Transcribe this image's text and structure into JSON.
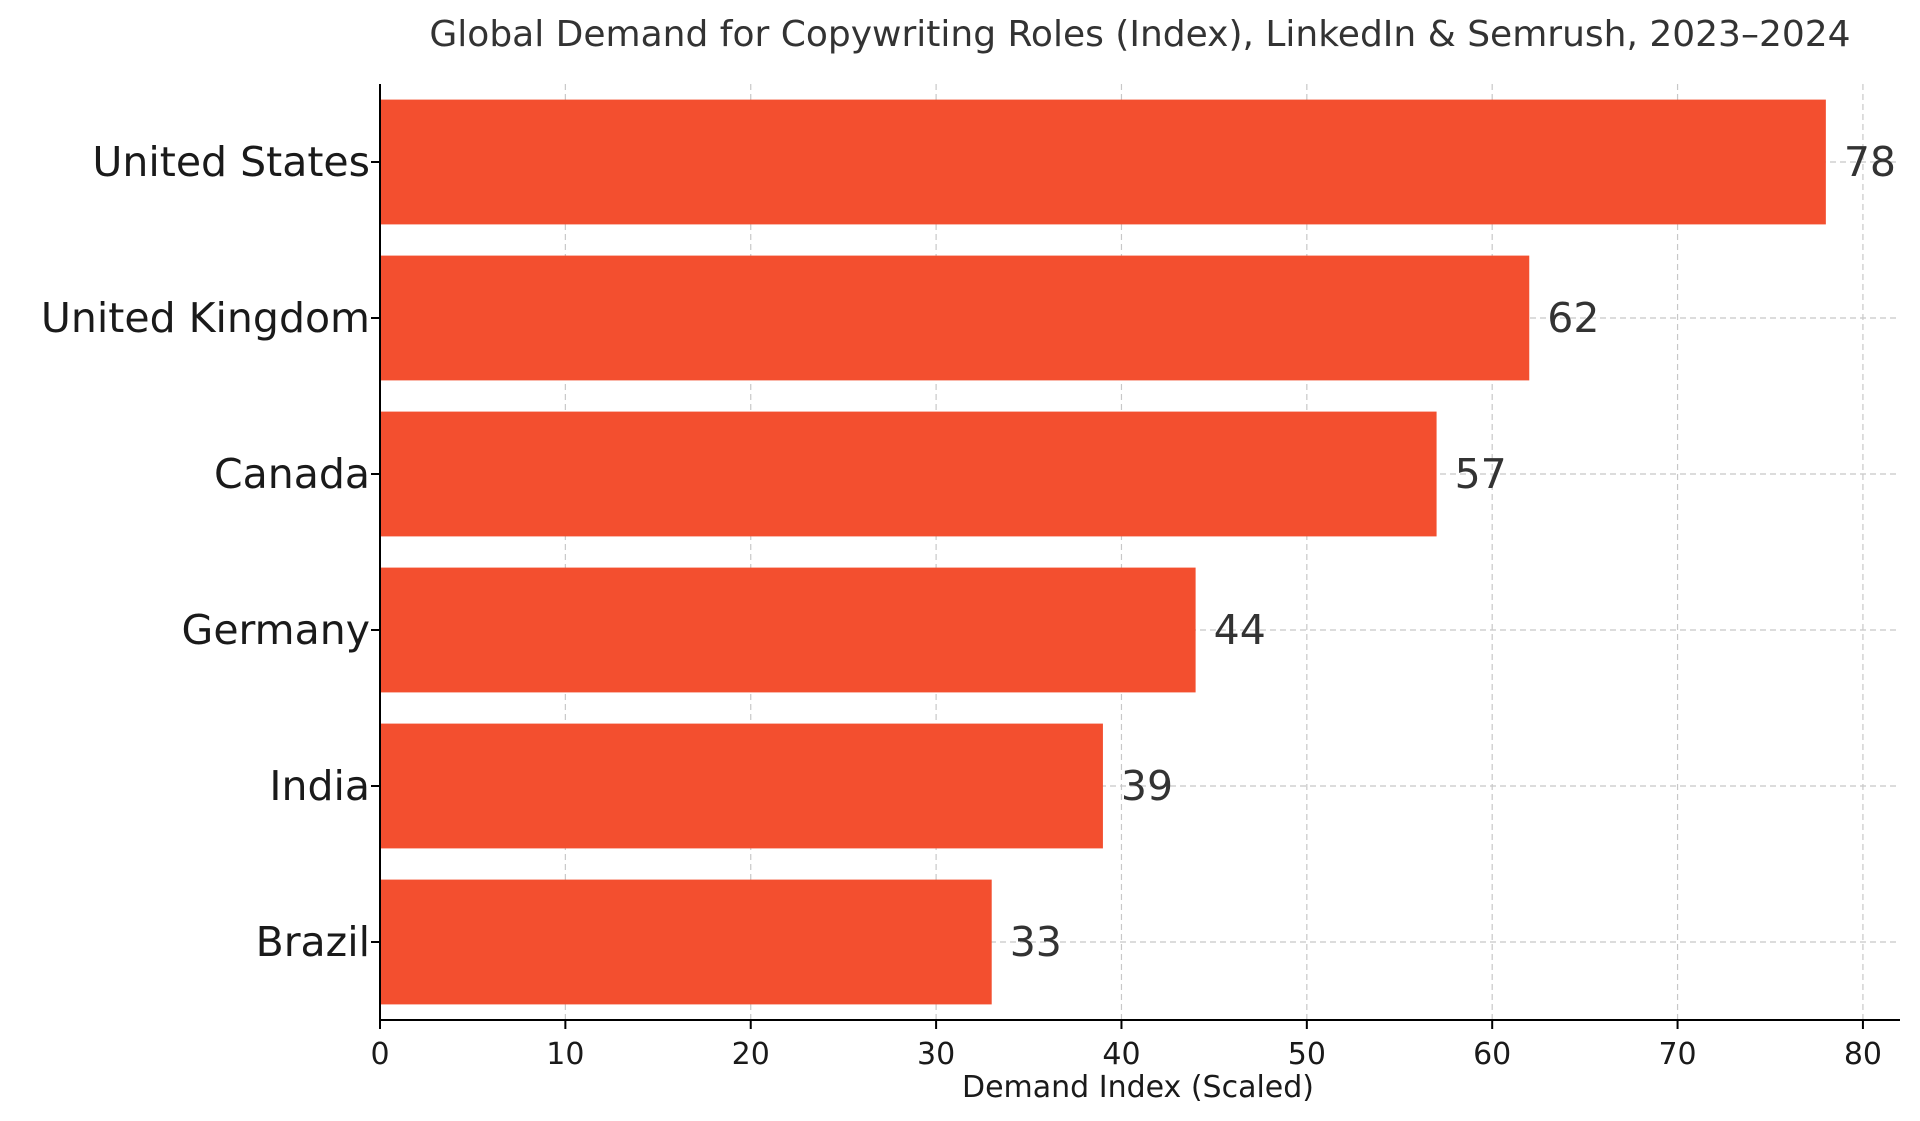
{
  "chart_data": {
    "type": "bar",
    "orientation": "horizontal",
    "title": "Global Demand for Copywriting Roles (Index), LinkedIn & Semrush, 2023–2024",
    "xlabel": "Demand Index (Scaled)",
    "ylabel": "",
    "categories": [
      "United States",
      "United Kingdom",
      "Canada",
      "Germany",
      "India",
      "Brazil"
    ],
    "values": [
      78,
      62,
      57,
      44,
      39,
      33
    ],
    "value_labels": [
      "78",
      "62",
      "57",
      "44",
      "39",
      "33"
    ],
    "xlim": [
      0,
      82
    ],
    "xticks": [
      0,
      10,
      20,
      30,
      40,
      50,
      60,
      70,
      80
    ],
    "xtick_labels": [
      "0",
      "10",
      "20",
      "30",
      "40",
      "50",
      "60",
      "70",
      "80"
    ],
    "grid": true,
    "bar_color": "#F34F2F"
  }
}
